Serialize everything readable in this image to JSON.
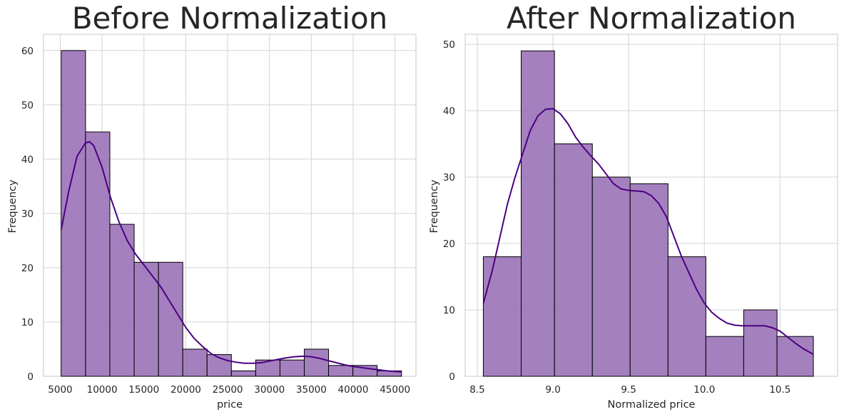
{
  "colors": {
    "bar_fill": "#9b72b8",
    "kde_line": "#4b0082",
    "grid": "#d4d4d4",
    "text": "#262626"
  },
  "chart_data": [
    {
      "type": "bar",
      "subtype": "histogram_with_kde",
      "title": "Before Normalization",
      "xlabel": "price",
      "ylabel": "Frequency",
      "xlim": [
        3000,
        47500
      ],
      "ylim": [
        0,
        63
      ],
      "grid": true,
      "x_ticks": [
        5000,
        10000,
        15000,
        20000,
        25000,
        30000,
        35000,
        40000,
        45000
      ],
      "y_ticks": [
        0,
        10,
        20,
        30,
        40,
        50,
        60
      ],
      "bin_edges": [
        5118,
        8022,
        10926,
        13830,
        16734,
        19638,
        22542,
        25446,
        28350,
        31254,
        34158,
        37062,
        39966,
        42870,
        45774
      ],
      "values": [
        60,
        45,
        28,
        21,
        21,
        5,
        4,
        1,
        3,
        3,
        5,
        2,
        2,
        1
      ],
      "kde": {
        "x": [
          5118,
          6000,
          7000,
          8000,
          8500,
          9000,
          10000,
          11000,
          12000,
          13000,
          14000,
          15000,
          16000,
          17000,
          18000,
          19000,
          20000,
          21000,
          22000,
          23000,
          24000,
          25000,
          26000,
          27000,
          28000,
          29000,
          30000,
          31000,
          32000,
          33000,
          34000,
          35000,
          36000,
          37000,
          38000,
          39000,
          40000,
          41000,
          42000,
          43000,
          44000,
          45000,
          45774
        ],
        "y": [
          27,
          34,
          40.5,
          43,
          43.2,
          42.5,
          38.5,
          33,
          28.5,
          25,
          22.5,
          20.5,
          18.5,
          16.5,
          14,
          11.5,
          9,
          7,
          5.5,
          4.2,
          3.4,
          2.9,
          2.6,
          2.4,
          2.4,
          2.5,
          2.8,
          3.1,
          3.4,
          3.6,
          3.7,
          3.6,
          3.3,
          2.9,
          2.5,
          2.1,
          1.8,
          1.6,
          1.4,
          1.2,
          1.0,
          0.9,
          0.8
        ]
      }
    },
    {
      "type": "bar",
      "subtype": "histogram_with_kde",
      "title": "After Normalization",
      "xlabel": "Normalized price",
      "ylabel": "Frequency",
      "xlim": [
        8.42,
        10.88
      ],
      "ylim": [
        0,
        51.5
      ],
      "grid": true,
      "x_ticks": [
        8.5,
        9.0,
        9.5,
        10.0,
        10.5
      ],
      "x_tick_labels": [
        "8.5",
        "9.0",
        "9.5",
        "10.0",
        "10.5"
      ],
      "y_ticks": [
        0,
        10,
        20,
        30,
        40,
        50
      ],
      "bin_edges": [
        8.54,
        8.79,
        9.01,
        9.26,
        9.51,
        9.76,
        10.01,
        10.26,
        10.48,
        10.72
      ],
      "values": [
        18,
        49,
        35,
        30,
        29,
        18,
        6,
        10,
        6
      ],
      "kde": {
        "x": [
          8.54,
          8.6,
          8.65,
          8.7,
          8.75,
          8.8,
          8.85,
          8.9,
          8.95,
          9.0,
          9.05,
          9.1,
          9.15,
          9.2,
          9.25,
          9.3,
          9.35,
          9.4,
          9.45,
          9.5,
          9.55,
          9.6,
          9.65,
          9.7,
          9.75,
          9.8,
          9.85,
          9.9,
          9.95,
          10.0,
          10.05,
          10.1,
          10.15,
          10.2,
          10.25,
          10.3,
          10.35,
          10.4,
          10.45,
          10.5,
          10.55,
          10.6,
          10.65,
          10.72
        ],
        "y": [
          11,
          16,
          21,
          26,
          30,
          33.5,
          37,
          39.2,
          40.2,
          40.3,
          39.5,
          38,
          36,
          34.5,
          33.2,
          32,
          30.5,
          29,
          28.2,
          28,
          27.9,
          27.8,
          27.2,
          26,
          24,
          21,
          18,
          15.5,
          13,
          11,
          9.6,
          8.7,
          8.0,
          7.7,
          7.6,
          7.6,
          7.6,
          7.6,
          7.3,
          6.8,
          5.9,
          5.0,
          4.2,
          3.3
        ]
      }
    }
  ]
}
